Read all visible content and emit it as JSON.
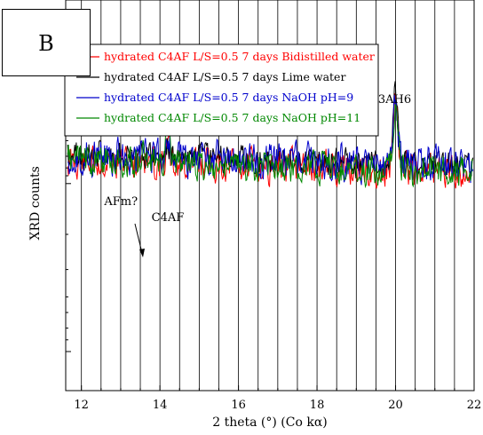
{
  "panel_label": "B",
  "chart_data": {
    "type": "line",
    "xlabel": "2 theta (°) (Co kα)",
    "ylabel": "XRD counts",
    "xlim": [
      11.6,
      22
    ],
    "x_ticks": [
      12,
      14,
      16,
      18,
      20,
      22
    ],
    "x_tick_labels": [
      "12",
      "14",
      "16",
      "18",
      "20",
      "22"
    ],
    "y_ticks_visible": "no labels",
    "grid": "vertical lines every 0.5",
    "legend_position": "top-left",
    "series": [
      {
        "name": "hydrated C4AF L/S=0.5 7 days Bidistilled water",
        "color": "#ff0000",
        "baseline": 0.415,
        "noise": 0.055,
        "peak_top": 0.225,
        "seed": 11,
        "afm": 0.025,
        "c4af": 0.05
      },
      {
        "name": "hydrated C4AF L/S=0.5 7 days Lime water",
        "color": "#000000",
        "baseline": 0.395,
        "noise": 0.045,
        "peak_top": 0.21,
        "seed": 23,
        "afm": 0.03,
        "c4af": 0.035
      },
      {
        "name": "hydrated C4AF L/S=0.5 7 days NaOH pH=9",
        "color": "#0000cc",
        "baseline": 0.4,
        "noise": 0.06,
        "peak_top": 0.23,
        "seed": 37,
        "afm": 0.015,
        "c4af": 0.06
      },
      {
        "name": "hydrated C4AF L/S=0.5 7 days NaOH pH=11",
        "color": "#008800",
        "baseline": 0.41,
        "noise": 0.05,
        "peak_top": 0.24,
        "seed": 53,
        "afm": 0.02,
        "c4af": 0.11
      }
    ],
    "annotations": [
      {
        "text": "C3AH6",
        "x": 20.0
      },
      {
        "text": "AFm?",
        "x": 13.55
      },
      {
        "text": "C4AF",
        "x": 14.2
      }
    ]
  }
}
